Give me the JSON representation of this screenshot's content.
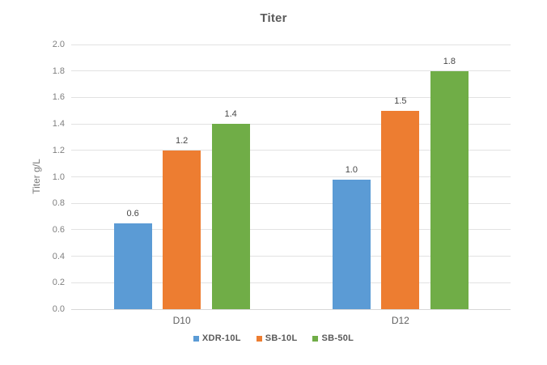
{
  "chart_data": {
    "type": "bar",
    "title": "Titer",
    "ylabel": "Titer g/L",
    "xlabel": "",
    "categories": [
      "D10",
      "D12"
    ],
    "series": [
      {
        "name": "XDR-10L",
        "color": "#5b9bd5",
        "values": [
          0.65,
          0.98
        ],
        "labels": [
          "0.6",
          "1.0"
        ]
      },
      {
        "name": "SB-10L",
        "color": "#ed7d31",
        "values": [
          1.2,
          1.5
        ],
        "labels": [
          "1.2",
          "1.5"
        ]
      },
      {
        "name": "SB-50L",
        "color": "#70ad47",
        "values": [
          1.4,
          1.8
        ],
        "labels": [
          "1.4",
          "1.8"
        ]
      }
    ],
    "ylim": [
      0,
      2.0
    ],
    "ytick_step": 0.2,
    "ytick_labels": [
      "0.0",
      "0.2",
      "0.4",
      "0.6",
      "0.8",
      "1.0",
      "1.2",
      "1.4",
      "1.6",
      "1.8",
      "2.0"
    ],
    "grid": true,
    "legend_position": "bottom",
    "colors": {
      "background": "#ffffff",
      "gridline": "#e2e2e2",
      "title_text": "#5b5b5b",
      "tick_text": "#7f7f7f",
      "value_label_text": "#474747"
    }
  }
}
